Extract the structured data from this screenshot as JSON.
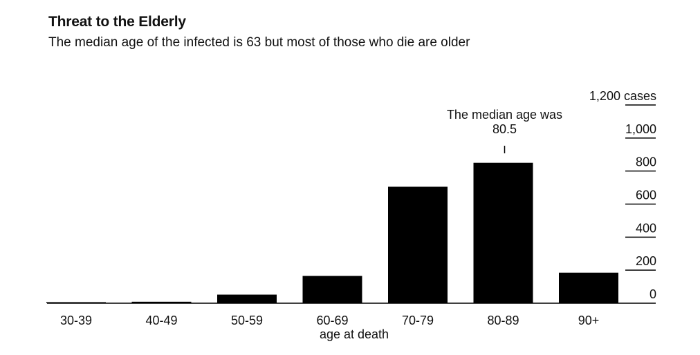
{
  "header": {
    "title": "Threat to the Elderly",
    "subtitle": "The median age of the infected is 63 but most of those who die are older"
  },
  "chart_data": {
    "type": "bar",
    "title": "Threat to the Elderly",
    "subtitle": "The median age of the infected is 63 but most of those who die are older",
    "xlabel": "age at death",
    "ylabel": "",
    "categories": [
      "30-39",
      "40-49",
      "50-59",
      "60-69",
      "70-79",
      "80-89",
      "90+"
    ],
    "values": [
      2,
      9,
      52,
      165,
      705,
      850,
      185
    ],
    "ylim": [
      0,
      1200
    ],
    "y_ticks": [
      {
        "value": 0,
        "label": "0"
      },
      {
        "value": 200,
        "label": "200"
      },
      {
        "value": 400,
        "label": "400"
      },
      {
        "value": 600,
        "label": "600"
      },
      {
        "value": 800,
        "label": "800"
      },
      {
        "value": 1000,
        "label": "1,000"
      },
      {
        "value": 1200,
        "label": "1,200 cases"
      }
    ],
    "y_axis_side": "right",
    "grid": false,
    "bar_color": "#000000",
    "annotation": {
      "lines": [
        "The median age was",
        "80.5"
      ],
      "category": "80-89"
    }
  }
}
